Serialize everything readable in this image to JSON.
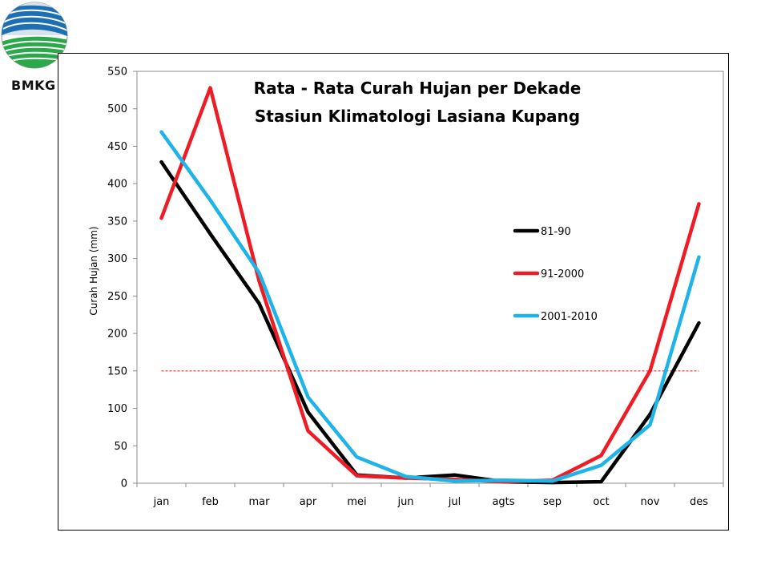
{
  "logo": {
    "text": "BMKG"
  },
  "chart_data": {
    "type": "line",
    "title_line1": "Rata - Rata Curah Hujan per Dekade",
    "title_line2": "Stasiun Klimatologi Lasiana Kupang",
    "ylabel": "Curah Hujan (mm)",
    "xlabel": "",
    "ylim": [
      0,
      550
    ],
    "yticks": [
      0,
      50,
      100,
      150,
      200,
      250,
      300,
      350,
      400,
      450,
      500,
      550
    ],
    "categories": [
      "jan",
      "feb",
      "mar",
      "apr",
      "mei",
      "jun",
      "jul",
      "agts",
      "sep",
      "oct",
      "nov",
      "des"
    ],
    "reference_line": {
      "value": 150,
      "color": "#e8121c",
      "style": "dashed"
    },
    "legend_position": "right",
    "series": [
      {
        "name": "81-90",
        "color": "#000000",
        "values": [
          429,
          333,
          240,
          95,
          11,
          7,
          11,
          2,
          1,
          2,
          92,
          214
        ]
      },
      {
        "name": "91-2000",
        "color": "#ee1c24",
        "values": [
          354,
          528,
          270,
          70,
          10,
          7,
          5,
          2,
          4,
          37,
          150,
          373
        ]
      },
      {
        "name": "2001-2010",
        "color": "#1eb4e8",
        "values": [
          469,
          378,
          281,
          115,
          35,
          9,
          3,
          4,
          3,
          24,
          78,
          302
        ]
      }
    ]
  }
}
